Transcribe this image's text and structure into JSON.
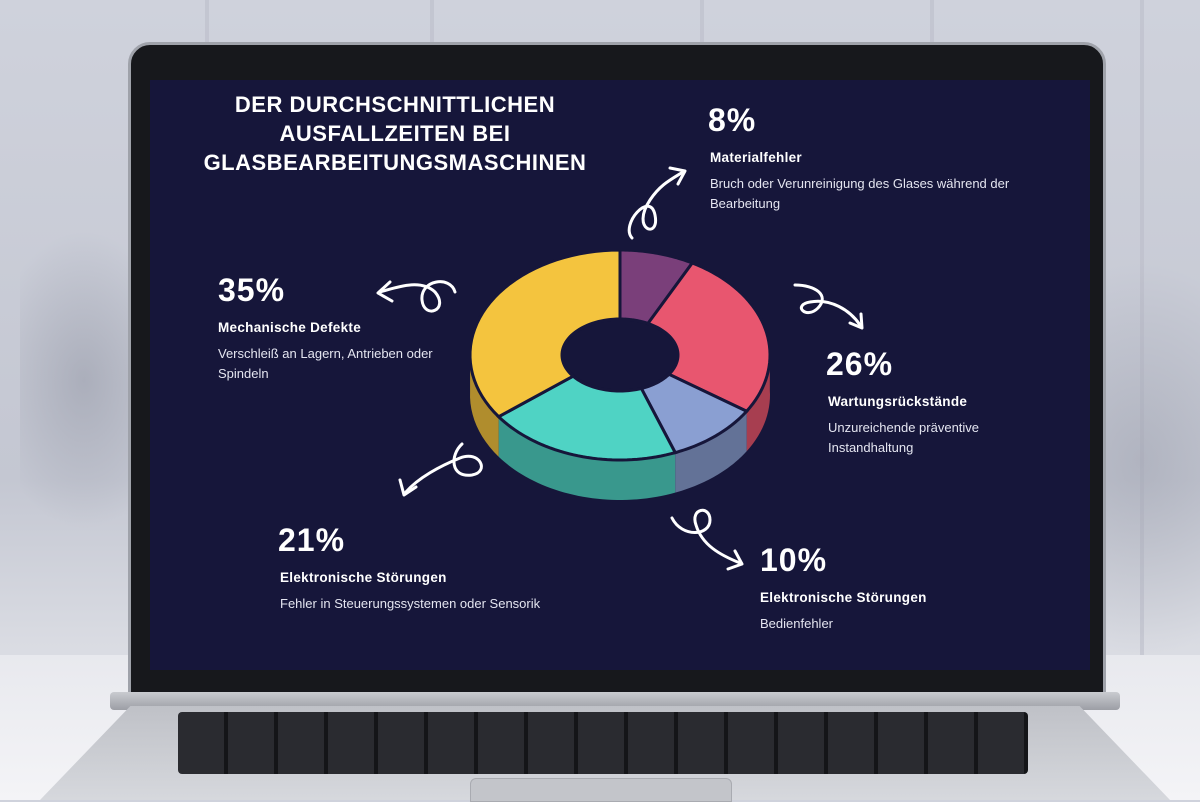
{
  "slide": {
    "title_lines": [
      "DER DURCHSCHNITTLICHEN",
      "AUSFALLZEITEN BEI",
      "GLASBEARBEITUNGSMASCHINEN"
    ]
  },
  "chart_data": {
    "type": "pie",
    "title": "DER DURCHSCHNITTLICHEN AUSFALLZEITEN BEI GLASBEARBEITUNGSMASCHINEN",
    "slices": [
      {
        "label": "Materialfehler",
        "value": 8,
        "value_label": "8%",
        "description": "Bruch oder Verunreinigung des Glases während der Bearbeitung",
        "color": "#7a3f7a"
      },
      {
        "label": "Wartungsrückstände",
        "value": 26,
        "value_label": "26%",
        "description": "Unzureichende präventive Instandhaltung",
        "color": "#e8566f"
      },
      {
        "label": "Elektronische Störungen",
        "value": 10,
        "value_label": "10%",
        "description": "Bedienfehler",
        "color": "#8a9fd2"
      },
      {
        "label": "Elektronische Störungen",
        "value": 21,
        "value_label": "21%",
        "description": "Fehler in Steuerungssystemen oder Sensorik",
        "color": "#4fd3c4"
      },
      {
        "label": "Mechanische Defekte",
        "value": 35,
        "value_label": "35%",
        "description": "Verschleiß an Lagern, Antrieben oder Spindeln",
        "color": "#f4c43e"
      }
    ]
  },
  "colors": {
    "screen_background": "#16163a",
    "text": "#ffffff"
  }
}
